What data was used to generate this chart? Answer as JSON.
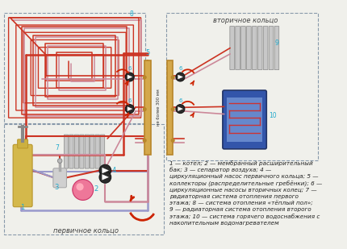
{
  "bg_color": "#f0f0eb",
  "legend_text": "1 — котёл; 2 — мембранный расширительный\nбак; 3 — сепаратор воздуха; 4 —\nциркуляционный насос первичного кольца; 5 —\nколлекторы (распределительные гребёнки); 6 —\nциркуляционные насосы вторичных колец; 7 —\nрадиаторная система отопления первого\nэтажа; 8 — система отопления «тёплый пол»;\n9 — радиаторная система отопления второго\nэтажа; 10 — система горячего водоснабжения с\nнакопительным водонагревателем",
  "primary_ring_label": "первичное кольцо",
  "secondary_ring_label": "вторичное кольцо",
  "not_more_label": "не более 300 мм",
  "pipe_red": "#cc3322",
  "pipe_blue": "#9999cc",
  "pipe_pink": "#cc8899",
  "collector_color": "#d4a84b",
  "collector_dark": "#b8862a",
  "radiator_color": "#bbbbbb",
  "boiler_color": "#d4a84b",
  "arrow_color": "#cc2200",
  "num_color": "#22aacc",
  "box_dash": "#8899aa",
  "font_size": 5.2,
  "label_font_size": 6.0
}
